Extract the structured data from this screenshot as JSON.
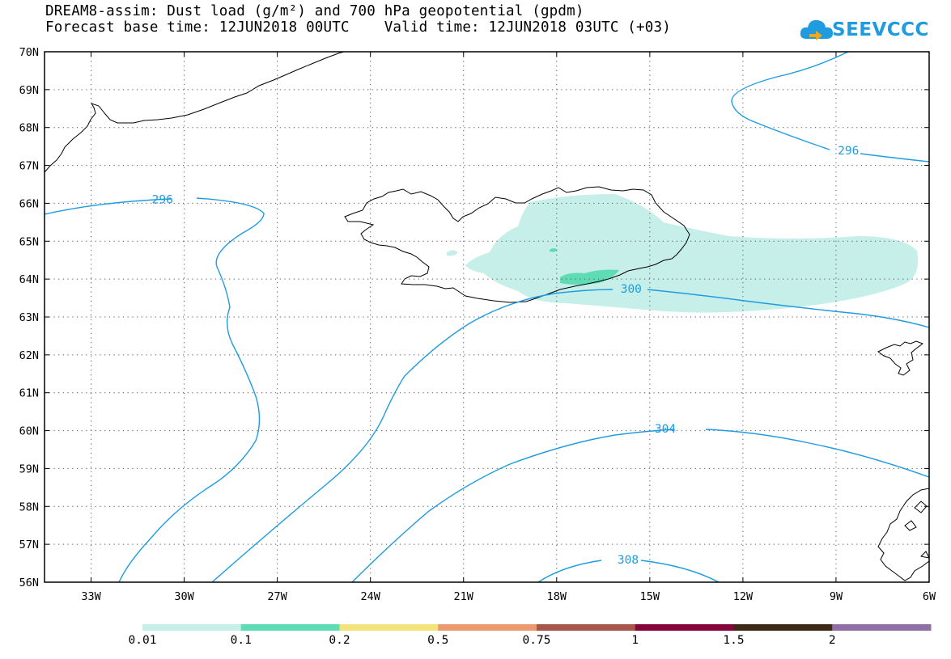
{
  "header": {
    "title_line1": "DREAM8-assim: Dust load (g/m²) and 700 hPa geopotential (gpdm)",
    "title_line2": "Forecast base time: 12JUN2018 00UTC    Valid time: 12JUN2018 03UTC (+03)",
    "logo_text": "SEEVCCC"
  },
  "map": {
    "lat_labels": [
      "70N",
      "69N",
      "68N",
      "67N",
      "66N",
      "65N",
      "64N",
      "63N",
      "62N",
      "61N",
      "60N",
      "59N",
      "58N",
      "57N",
      "56N"
    ],
    "lon_labels": [
      "33W",
      "30W",
      "27W",
      "24W",
      "21W",
      "18W",
      "15W",
      "12W",
      "9W",
      "6W"
    ],
    "lat_range": [
      56,
      70
    ],
    "lon_range": [
      -34.5,
      -6
    ],
    "grid": "dotted",
    "contour_color": "#1f9ce0",
    "contour_labels": [
      {
        "value": "296",
        "lon": -30.7,
        "lat": 66.1
      },
      {
        "value": "296",
        "lon": -8.6,
        "lat": 67.4
      },
      {
        "value": "300",
        "lon": -15.6,
        "lat": 63.75
      },
      {
        "value": "304",
        "lon": -14.5,
        "lat": 60.05
      },
      {
        "value": "308",
        "lon": -15.7,
        "lat": 56.6
      }
    ],
    "dust_colors": {
      "light": "#c6efe9",
      "medium": "#5fdcb3"
    }
  },
  "colorbar": {
    "labels": [
      "0.01",
      "0.1",
      "0.2",
      "0.5",
      "0.75",
      "1",
      "1.5",
      "2"
    ],
    "colors": [
      "#c6efe9",
      "#5fdcb3",
      "#f6e27a",
      "#eb9a70",
      "#a6574a",
      "#84063a",
      "#3d2a16",
      "#8f6fa5"
    ]
  }
}
